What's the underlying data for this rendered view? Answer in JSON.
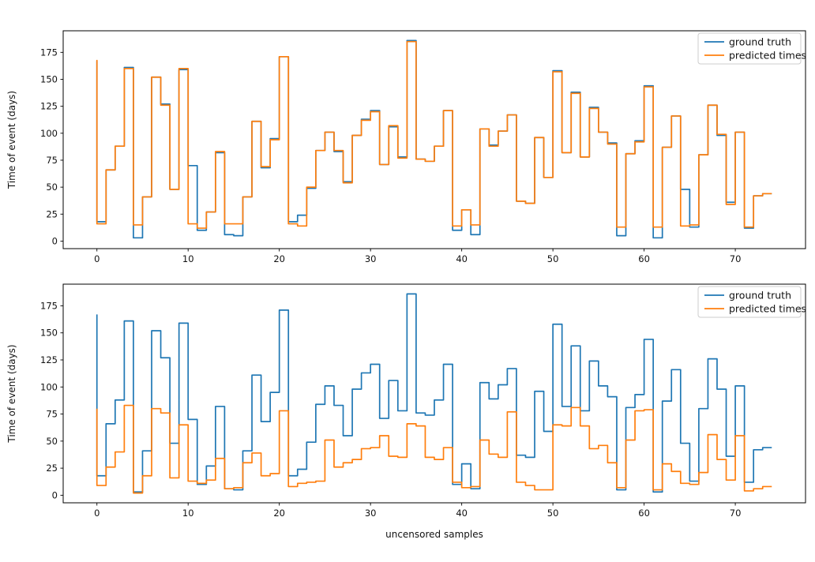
{
  "figure": {
    "background": "#ffffff"
  },
  "colors": {
    "ground_truth": "#1f77b4",
    "predicted": "#ff7f0e",
    "spine": "#000000",
    "legend_border": "#cccccc"
  },
  "chart_data": [
    {
      "type": "step",
      "step_where": "pre",
      "title": "",
      "xlabel": "",
      "ylabel": "Time of event (days)",
      "x_start": 0,
      "x_step": 1,
      "n_samples": 75,
      "xlim": [
        -3.7,
        77.7
      ],
      "ylim": [
        -7,
        195
      ],
      "xticks": [
        0,
        10,
        20,
        30,
        40,
        50,
        60,
        70
      ],
      "yticks": [
        0,
        25,
        50,
        75,
        100,
        125,
        150,
        175
      ],
      "grid": false,
      "legend_position": "upper right",
      "series": [
        {
          "name": "ground truth",
          "color": "#1f77b4",
          "values": [
            167,
            18,
            66,
            88,
            161,
            3,
            41,
            152,
            127,
            48,
            159,
            70,
            10,
            27,
            82,
            6,
            5,
            41,
            111,
            68,
            95,
            171,
            18,
            24,
            49,
            84,
            101,
            83,
            55,
            98,
            113,
            121,
            71,
            106,
            78,
            186,
            76,
            74,
            88,
            121,
            10,
            29,
            6,
            104,
            89,
            102,
            117,
            37,
            35,
            96,
            59,
            158,
            82,
            138,
            78,
            124,
            101,
            91,
            5,
            81,
            93,
            144,
            3,
            87,
            116,
            48,
            13,
            80,
            126,
            98,
            36,
            101,
            12,
            42,
            44
          ]
        },
        {
          "name": "predicted times",
          "color": "#ff7f0e",
          "values": [
            168,
            16,
            66,
            88,
            160,
            15,
            41,
            152,
            126,
            48,
            160,
            16,
            12,
            27,
            83,
            16,
            16,
            41,
            111,
            69,
            94,
            171,
            16,
            14,
            50,
            84,
            101,
            84,
            54,
            98,
            112,
            120,
            71,
            107,
            77,
            185,
            76,
            74,
            88,
            121,
            14,
            29,
            15,
            104,
            88,
            102,
            117,
            37,
            35,
            96,
            59,
            157,
            82,
            137,
            78,
            123,
            101,
            90,
            13,
            81,
            92,
            143,
            13,
            87,
            116,
            14,
            15,
            80,
            126,
            99,
            34,
            101,
            13,
            42,
            44
          ]
        }
      ]
    },
    {
      "type": "step",
      "step_where": "pre",
      "title": "",
      "xlabel": "uncensored samples",
      "ylabel": "Time of event (days)",
      "x_start": 0,
      "x_step": 1,
      "n_samples": 75,
      "xlim": [
        -3.7,
        77.7
      ],
      "ylim": [
        -7,
        195
      ],
      "xticks": [
        0,
        10,
        20,
        30,
        40,
        50,
        60,
        70
      ],
      "yticks": [
        0,
        25,
        50,
        75,
        100,
        125,
        150,
        175
      ],
      "grid": false,
      "legend_position": "upper right",
      "series": [
        {
          "name": "ground truth",
          "color": "#1f77b4",
          "values": [
            167,
            18,
            66,
            88,
            161,
            3,
            41,
            152,
            127,
            48,
            159,
            70,
            10,
            27,
            82,
            6,
            5,
            41,
            111,
            68,
            95,
            171,
            18,
            24,
            49,
            84,
            101,
            83,
            55,
            98,
            113,
            121,
            71,
            106,
            78,
            186,
            76,
            74,
            88,
            121,
            10,
            29,
            6,
            104,
            89,
            102,
            117,
            37,
            35,
            96,
            59,
            158,
            82,
            138,
            78,
            124,
            101,
            91,
            5,
            81,
            93,
            144,
            3,
            87,
            116,
            48,
            13,
            80,
            126,
            98,
            36,
            101,
            12,
            42,
            44
          ]
        },
        {
          "name": "predicted times",
          "color": "#ff7f0e",
          "values": [
            80,
            9,
            26,
            40,
            83,
            2,
            18,
            80,
            76,
            16,
            65,
            13,
            11,
            14,
            34,
            6,
            7,
            30,
            39,
            18,
            20,
            78,
            8,
            11,
            12,
            13,
            51,
            26,
            30,
            33,
            43,
            44,
            55,
            36,
            35,
            66,
            64,
            35,
            33,
            44,
            12,
            7,
            8,
            51,
            38,
            35,
            77,
            12,
            9,
            5,
            5,
            65,
            64,
            81,
            64,
            43,
            46,
            30,
            7,
            51,
            78,
            79,
            5,
            29,
            22,
            11,
            10,
            21,
            56,
            33,
            14,
            55,
            4,
            6,
            8
          ]
        }
      ]
    }
  ]
}
